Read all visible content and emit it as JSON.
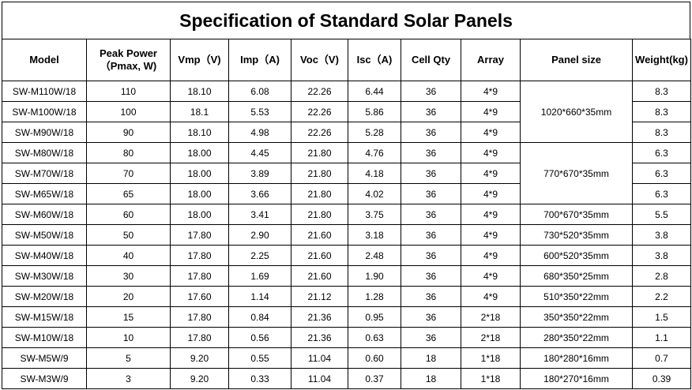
{
  "title": "Specification of Standard Solar Panels",
  "headers": {
    "model": "Model",
    "peak_power_l1": "Peak Power",
    "peak_power_l2": "（Pmax, W)",
    "vmp": "Vmp（V)",
    "imp": "Imp（A)",
    "voc": "Voc（V)",
    "isc": "Isc（A)",
    "cell_qty": "Cell Qty",
    "array": "Array",
    "panel_size": "Panel size",
    "weight": "Weight(kg)"
  },
  "rows": [
    {
      "model": "SW-M110W/18",
      "power": "110",
      "vmp": "18.10",
      "imp": "6.08",
      "voc": "22.26",
      "isc": "6.44",
      "cells": "36",
      "array": "4*9",
      "size": "1020*660*35mm",
      "weight": "8.3"
    },
    {
      "model": "SW-M100W/18",
      "power": "100",
      "vmp": "18.1",
      "imp": "5.53",
      "voc": "22.26",
      "isc": "5.86",
      "cells": "36",
      "array": "4*9",
      "size": "",
      "weight": "8.3"
    },
    {
      "model": "SW-M90W/18",
      "power": "90",
      "vmp": "18.10",
      "imp": "4.98",
      "voc": "22.26",
      "isc": "5.28",
      "cells": "36",
      "array": "4*9",
      "size": "",
      "weight": "8.3"
    },
    {
      "model": "SW-M80W/18",
      "power": "80",
      "vmp": "18.00",
      "imp": "4.45",
      "voc": "21.80",
      "isc": "4.76",
      "cells": "36",
      "array": "4*9",
      "size": "770*670*35mm",
      "weight": "6.3"
    },
    {
      "model": "SW-M70W/18",
      "power": "70",
      "vmp": "18.00",
      "imp": "3.89",
      "voc": "21.80",
      "isc": "4.18",
      "cells": "36",
      "array": "4*9",
      "size": "",
      "weight": "6.3"
    },
    {
      "model": "SW-M65W/18",
      "power": "65",
      "vmp": "18.00",
      "imp": "3.66",
      "voc": "21.80",
      "isc": "4.02",
      "cells": "36",
      "array": "4*9",
      "size": "",
      "weight": "6.3"
    },
    {
      "model": "SW-M60W/18",
      "power": "60",
      "vmp": "18.00",
      "imp": "3.41",
      "voc": "21.80",
      "isc": "3.75",
      "cells": "36",
      "array": "4*9",
      "size": "700*670*35mm",
      "weight": "5.5"
    },
    {
      "model": "SW-M50W/18",
      "power": "50",
      "vmp": "17.80",
      "imp": "2.90",
      "voc": "21.60",
      "isc": "3.18",
      "cells": "36",
      "array": "4*9",
      "size": "730*520*35mm",
      "weight": "3.8"
    },
    {
      "model": "SW-M40W/18",
      "power": "40",
      "vmp": "17.80",
      "imp": "2.25",
      "voc": "21.60",
      "isc": "2.48",
      "cells": "36",
      "array": "4*9",
      "size": "600*520*35mm",
      "weight": "3.8"
    },
    {
      "model": "SW-M30W/18",
      "power": "30",
      "vmp": "17.80",
      "imp": "1.69",
      "voc": "21.60",
      "isc": "1.90",
      "cells": "36",
      "array": "4*9",
      "size": "680*350*25mm",
      "weight": "2.8"
    },
    {
      "model": "SW-M20W/18",
      "power": "20",
      "vmp": "17.60",
      "imp": "1.14",
      "voc": "21.12",
      "isc": "1.28",
      "cells": "36",
      "array": "4*9",
      "size": "510*350*22mm",
      "weight": "2.2"
    },
    {
      "model": "SW-M15W/18",
      "power": "15",
      "vmp": "17.80",
      "imp": "0.84",
      "voc": "21.36",
      "isc": "0.95",
      "cells": "36",
      "array": "2*18",
      "size": "350*350*22mm",
      "weight": "1.5"
    },
    {
      "model": "SW-M10W/18",
      "power": "10",
      "vmp": "17.80",
      "imp": "0.56",
      "voc": "21.36",
      "isc": "0.63",
      "cells": "36",
      "array": "2*18",
      "size": "280*350*22mm",
      "weight": "1.1"
    },
    {
      "model": "SW-M5W/9",
      "power": "5",
      "vmp": "9.20",
      "imp": "0.55",
      "voc": "11.04",
      "isc": "0.60",
      "cells": "18",
      "array": "1*18",
      "size": "180*280*16mm",
      "weight": "0.7"
    },
    {
      "model": "SW-M3W/9",
      "power": "3",
      "vmp": "9.20",
      "imp": "0.33",
      "voc": "11.04",
      "isc": "0.37",
      "cells": "18",
      "array": "1*18",
      "size": "180*270*16mm",
      "weight": "0.39"
    }
  ]
}
